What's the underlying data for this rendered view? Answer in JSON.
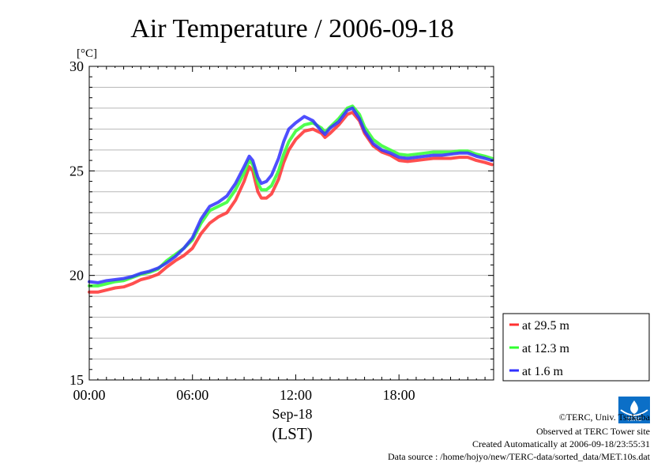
{
  "chart_data": {
    "type": "line",
    "title": "Air Temperature / 2006-09-18",
    "ylabel": "[°C]",
    "xlabel_line1": "Sep-18",
    "xlabel_line2": "(LST)",
    "xlim_hours": [
      0,
      23.5
    ],
    "ylim": [
      15,
      30
    ],
    "yticks": [
      "15",
      "20",
      "25",
      "30"
    ],
    "xticks": [
      {
        "hour": 0,
        "label": "00:00"
      },
      {
        "hour": 6,
        "label": "06:00"
      },
      {
        "hour": 12,
        "label": "12:00"
      },
      {
        "hour": 18,
        "label": "18:00"
      }
    ],
    "grid": true,
    "legend_position": "right-bottom",
    "series": [
      {
        "name": "at 29.5 m",
        "color": "#ff3030",
        "points": [
          [
            0,
            19.2
          ],
          [
            0.5,
            19.2
          ],
          [
            1,
            19.3
          ],
          [
            1.5,
            19.4
          ],
          [
            2,
            19.45
          ],
          [
            2.5,
            19.6
          ],
          [
            3,
            19.8
          ],
          [
            3.5,
            19.9
          ],
          [
            4,
            20.05
          ],
          [
            4.5,
            20.4
          ],
          [
            5,
            20.7
          ],
          [
            5.5,
            20.95
          ],
          [
            6,
            21.3
          ],
          [
            6.5,
            22.0
          ],
          [
            7,
            22.5
          ],
          [
            7.5,
            22.8
          ],
          [
            8,
            23.0
          ],
          [
            8.5,
            23.6
          ],
          [
            9,
            24.5
          ],
          [
            9.3,
            25.2
          ],
          [
            9.5,
            25.0
          ],
          [
            9.8,
            24.0
          ],
          [
            10,
            23.7
          ],
          [
            10.3,
            23.7
          ],
          [
            10.6,
            23.9
          ],
          [
            11,
            24.6
          ],
          [
            11.3,
            25.4
          ],
          [
            11.6,
            26.0
          ],
          [
            12,
            26.5
          ],
          [
            12.5,
            26.9
          ],
          [
            13,
            27.0
          ],
          [
            13.5,
            26.8
          ],
          [
            13.7,
            26.6
          ],
          [
            14,
            26.8
          ],
          [
            14.5,
            27.2
          ],
          [
            15,
            27.7
          ],
          [
            15.3,
            27.8
          ],
          [
            15.7,
            27.4
          ],
          [
            16,
            26.8
          ],
          [
            16.5,
            26.2
          ],
          [
            17,
            25.9
          ],
          [
            17.5,
            25.75
          ],
          [
            18,
            25.5
          ],
          [
            18.5,
            25.45
          ],
          [
            19,
            25.5
          ],
          [
            19.5,
            25.55
          ],
          [
            20,
            25.6
          ],
          [
            20.5,
            25.6
          ],
          [
            21,
            25.6
          ],
          [
            21.5,
            25.65
          ],
          [
            22,
            25.65
          ],
          [
            22.5,
            25.5
          ],
          [
            23,
            25.4
          ],
          [
            23.4,
            25.3
          ]
        ]
      },
      {
        "name": "at 12.3 m",
        "color": "#30ff30",
        "points": [
          [
            0,
            19.5
          ],
          [
            0.5,
            19.5
          ],
          [
            1,
            19.6
          ],
          [
            1.5,
            19.7
          ],
          [
            2,
            19.75
          ],
          [
            2.5,
            19.9
          ],
          [
            3,
            20.05
          ],
          [
            3.5,
            20.15
          ],
          [
            4,
            20.3
          ],
          [
            4.5,
            20.7
          ],
          [
            5,
            21.0
          ],
          [
            5.5,
            21.3
          ],
          [
            6,
            21.7
          ],
          [
            6.5,
            22.5
          ],
          [
            7,
            23.1
          ],
          [
            7.5,
            23.3
          ],
          [
            8,
            23.5
          ],
          [
            8.5,
            24.1
          ],
          [
            9,
            24.9
          ],
          [
            9.3,
            25.5
          ],
          [
            9.5,
            25.3
          ],
          [
            9.8,
            24.4
          ],
          [
            10,
            24.1
          ],
          [
            10.3,
            24.1
          ],
          [
            10.6,
            24.3
          ],
          [
            11,
            25.0
          ],
          [
            11.3,
            25.8
          ],
          [
            11.6,
            26.4
          ],
          [
            12,
            26.9
          ],
          [
            12.5,
            27.2
          ],
          [
            13,
            27.3
          ],
          [
            13.5,
            27.05
          ],
          [
            13.7,
            26.85
          ],
          [
            14,
            27.1
          ],
          [
            14.5,
            27.5
          ],
          [
            15,
            28.0
          ],
          [
            15.3,
            28.1
          ],
          [
            15.7,
            27.7
          ],
          [
            16,
            27.1
          ],
          [
            16.5,
            26.5
          ],
          [
            17,
            26.2
          ],
          [
            17.5,
            26.0
          ],
          [
            18,
            25.8
          ],
          [
            18.5,
            25.75
          ],
          [
            19,
            25.8
          ],
          [
            19.5,
            25.85
          ],
          [
            20,
            25.9
          ],
          [
            20.5,
            25.9
          ],
          [
            21,
            25.9
          ],
          [
            21.5,
            25.95
          ],
          [
            22,
            25.95
          ],
          [
            22.5,
            25.8
          ],
          [
            23,
            25.7
          ],
          [
            23.4,
            25.6
          ]
        ]
      },
      {
        "name": "at 1.6 m",
        "color": "#3030ff",
        "points": [
          [
            0,
            19.7
          ],
          [
            0.5,
            19.65
          ],
          [
            1,
            19.75
          ],
          [
            1.5,
            19.8
          ],
          [
            2,
            19.85
          ],
          [
            2.5,
            19.95
          ],
          [
            3,
            20.1
          ],
          [
            3.5,
            20.2
          ],
          [
            4,
            20.35
          ],
          [
            4.5,
            20.6
          ],
          [
            5,
            20.9
          ],
          [
            5.5,
            21.3
          ],
          [
            6,
            21.8
          ],
          [
            6.5,
            22.7
          ],
          [
            7,
            23.3
          ],
          [
            7.5,
            23.5
          ],
          [
            8,
            23.8
          ],
          [
            8.5,
            24.4
          ],
          [
            9,
            25.2
          ],
          [
            9.3,
            25.7
          ],
          [
            9.5,
            25.5
          ],
          [
            9.8,
            24.7
          ],
          [
            10,
            24.4
          ],
          [
            10.3,
            24.5
          ],
          [
            10.6,
            24.8
          ],
          [
            11,
            25.6
          ],
          [
            11.3,
            26.4
          ],
          [
            11.6,
            27.0
          ],
          [
            12,
            27.3
          ],
          [
            12.5,
            27.6
          ],
          [
            13,
            27.4
          ],
          [
            13.5,
            26.9
          ],
          [
            13.7,
            26.75
          ],
          [
            14,
            27.05
          ],
          [
            14.5,
            27.35
          ],
          [
            15,
            27.9
          ],
          [
            15.3,
            28.0
          ],
          [
            15.7,
            27.5
          ],
          [
            16,
            26.9
          ],
          [
            16.5,
            26.3
          ],
          [
            17,
            26.0
          ],
          [
            17.5,
            25.85
          ],
          [
            18,
            25.65
          ],
          [
            18.5,
            25.6
          ],
          [
            19,
            25.65
          ],
          [
            19.5,
            25.7
          ],
          [
            20,
            25.75
          ],
          [
            20.5,
            25.75
          ],
          [
            21,
            25.8
          ],
          [
            21.5,
            25.85
          ],
          [
            22,
            25.85
          ],
          [
            22.5,
            25.7
          ],
          [
            23,
            25.6
          ],
          [
            23.4,
            25.5
          ]
        ]
      }
    ]
  },
  "credits": {
    "copyright": "©TERC, Univ. Tsukuba",
    "observed": "Observed at TERC Tower site",
    "created": "Created Automatically at 2006-09-18/23:55:31",
    "source": "Data source : /home/hojyo/new/TERC-data/sorted_data/MET.10s.dat",
    "logo_text": "TERC"
  }
}
